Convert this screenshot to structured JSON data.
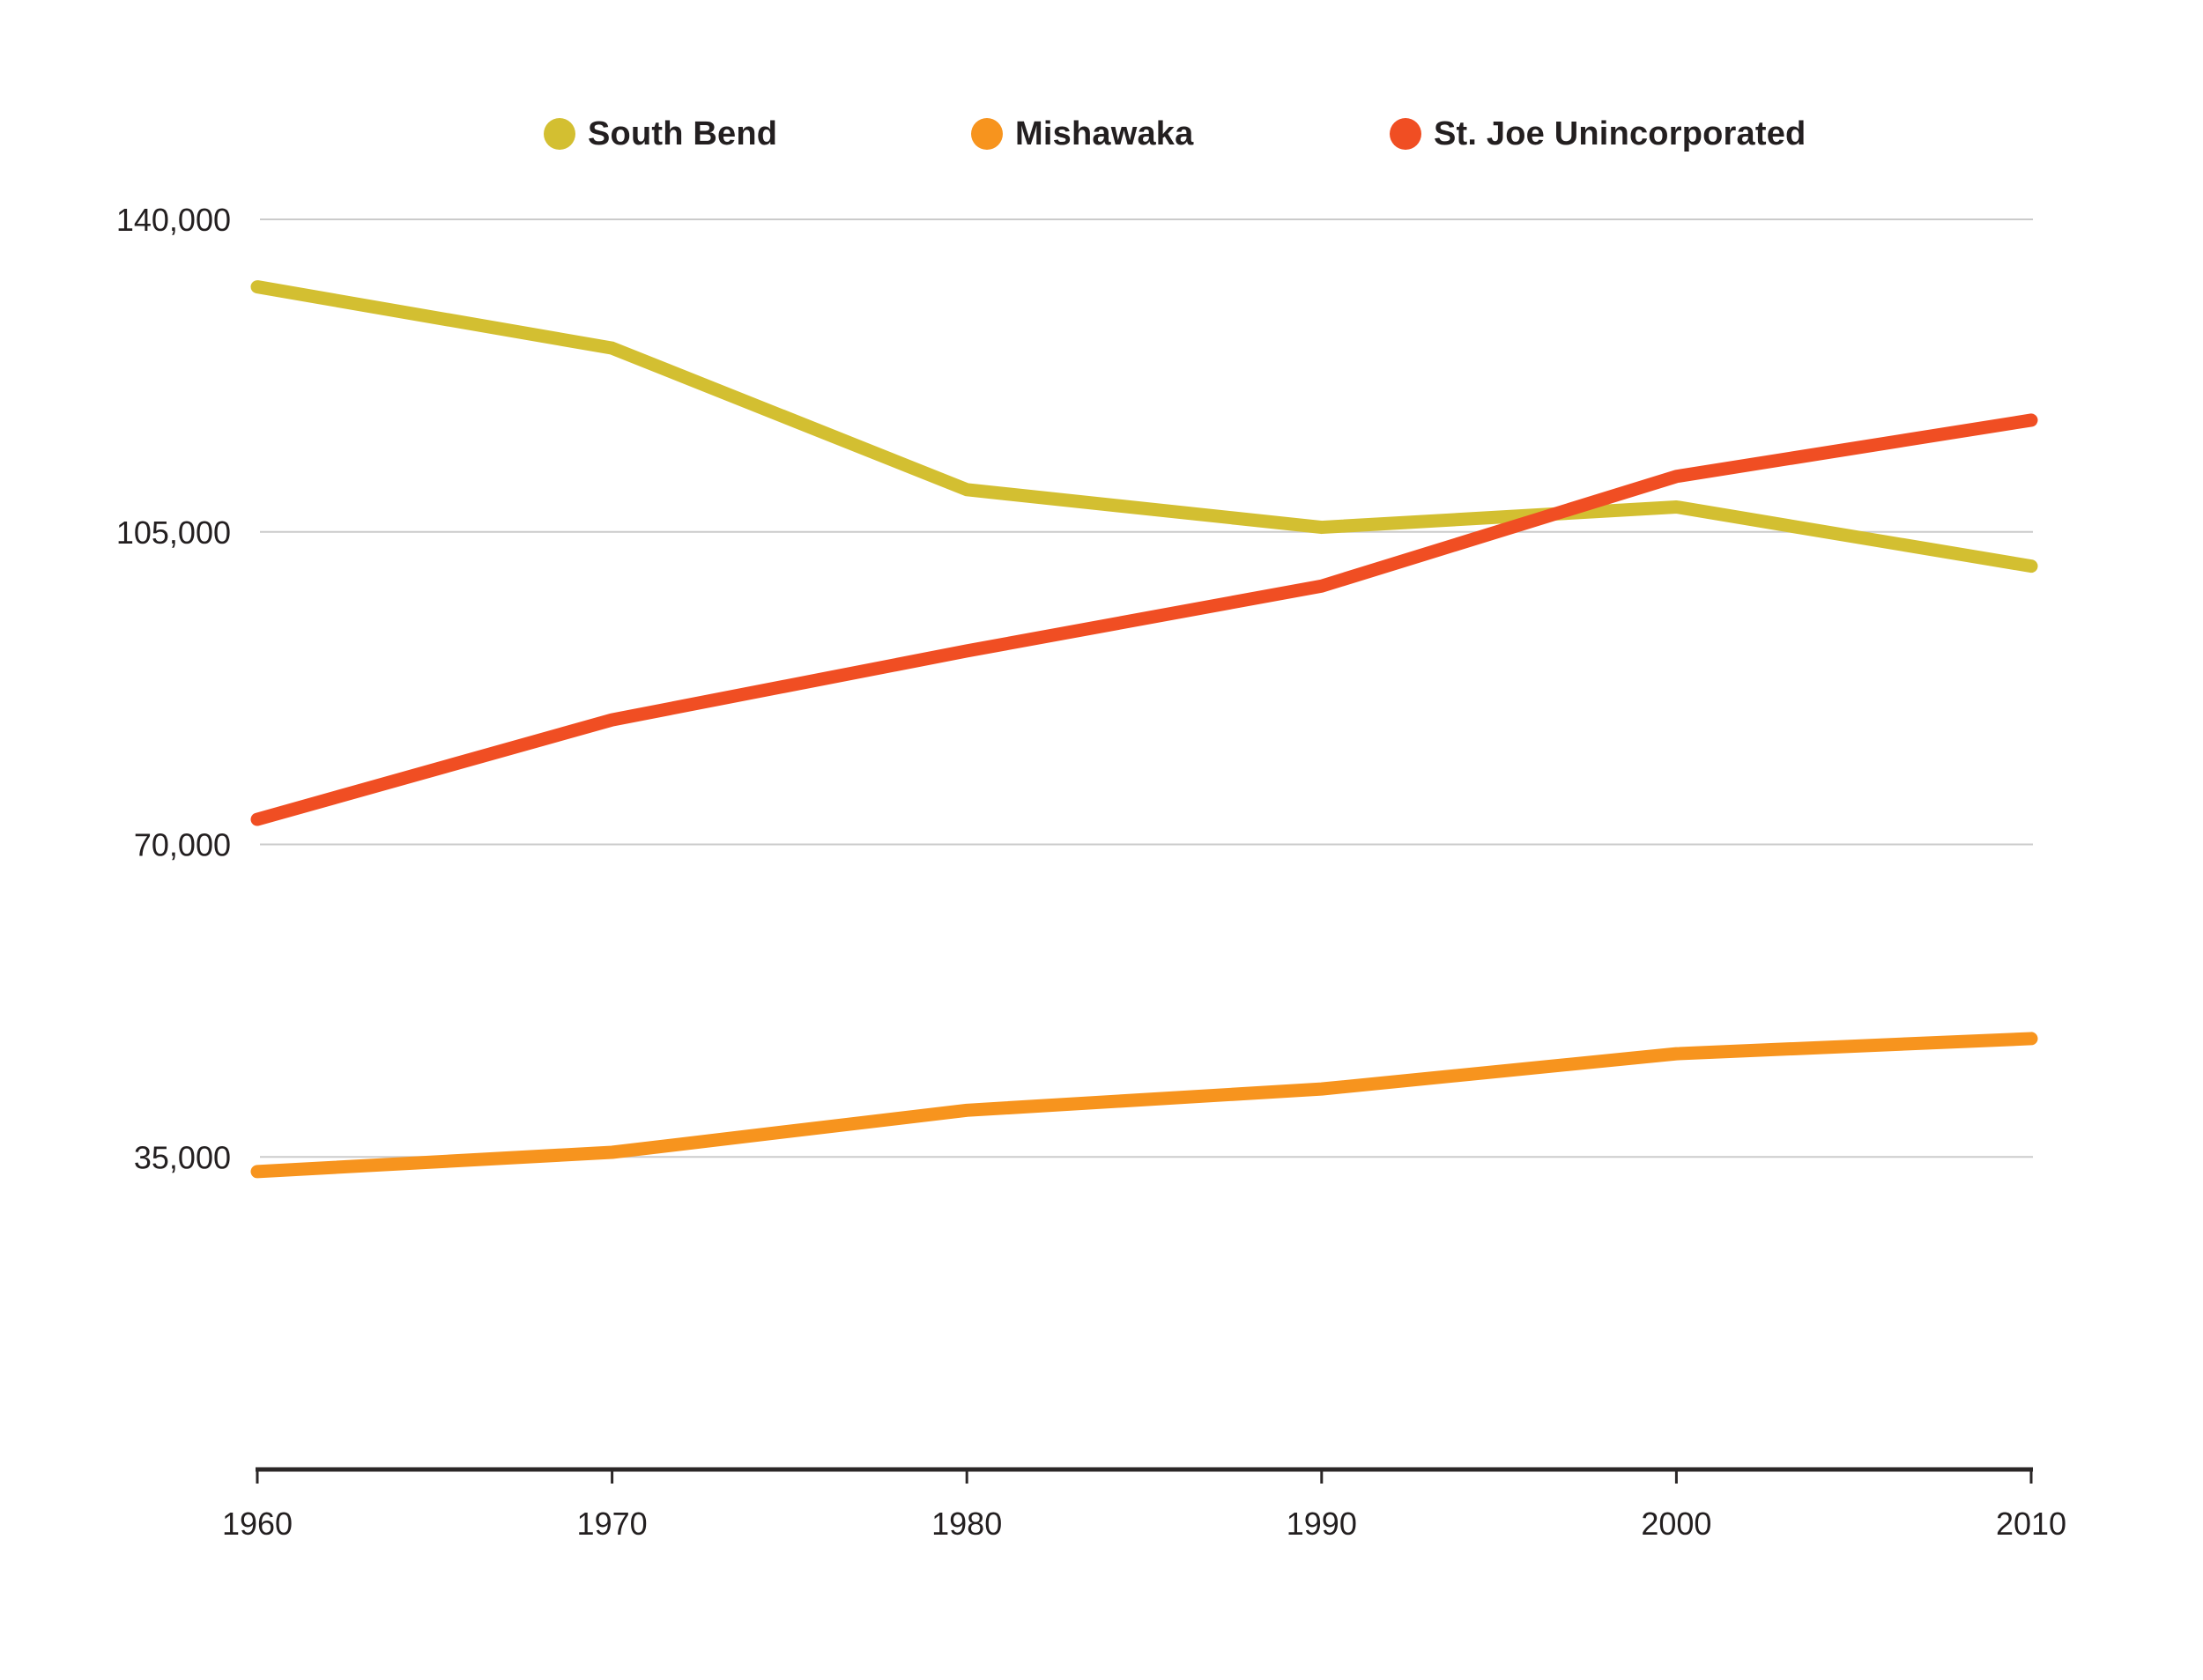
{
  "chart_data": {
    "type": "line",
    "x": [
      1960,
      1970,
      1980,
      1990,
      2000,
      2010
    ],
    "x_tick_labels": [
      "1960",
      "1970",
      "1980",
      "1990",
      "2000",
      "2010"
    ],
    "y_ticks": [
      {
        "value": 140000,
        "label": "140,000"
      },
      {
        "value": 105000,
        "label": "105,000"
      },
      {
        "value": 70000,
        "label": "70,000"
      },
      {
        "value": 35000,
        "label": "35,000"
      }
    ],
    "ylim": [
      0,
      140000
    ],
    "xlabel": "",
    "ylabel": "",
    "title": "",
    "grid": true,
    "legend_position": "top",
    "series": [
      {
        "name": "South Bend",
        "color": "#d3bf31",
        "values": [
          132445,
          125580,
          109727,
          105511,
          107789,
          101168
        ]
      },
      {
        "name": "Mishawaka",
        "color": "#f7941e",
        "values": [
          33361,
          35517,
          40224,
          42608,
          46557,
          48252
        ]
      },
      {
        "name": "St. Joe Unincorporated",
        "color": "#f04e23",
        "values": [
          72808,
          83948,
          91666,
          98933,
          111213,
          117511
        ]
      }
    ],
    "colors": {
      "grid": "#cbcbcb",
      "axis": "#2b2727",
      "text": "#231f20",
      "background": "#ffffff"
    }
  },
  "legend": {
    "items": [
      {
        "label": "South Bend"
      },
      {
        "label": "Mishawaka"
      },
      {
        "label": "St. Joe Unincorporated"
      }
    ]
  }
}
